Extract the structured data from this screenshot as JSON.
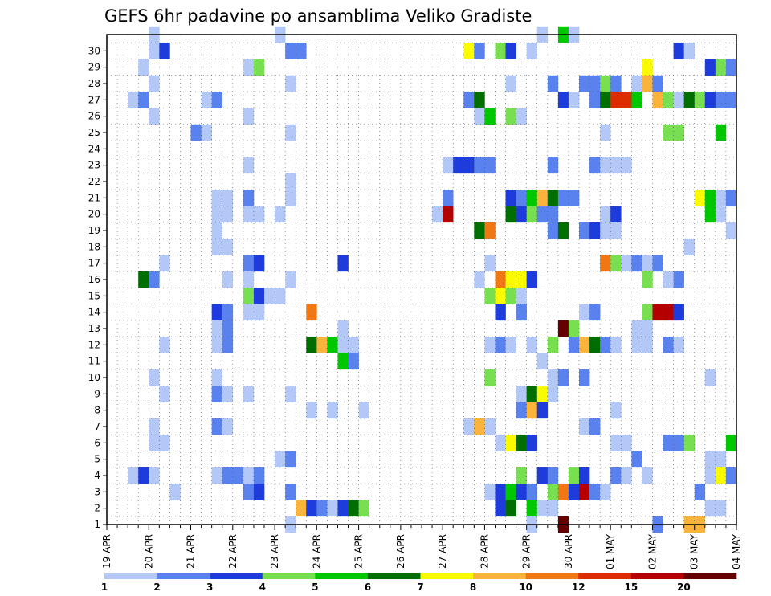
{
  "chart_data": {
    "type": "heatmap",
    "title": "GEFS 6hr padavine po ansamblima Veliko Gradiste",
    "xlabel": "",
    "ylabel": "",
    "x_ticks": [
      "19 APR",
      "20 APR",
      "21 APR",
      "22 APR",
      "23 APR",
      "24 APR",
      "25 APR",
      "26 APR",
      "27 APR",
      "28 APR",
      "29 APR",
      "30 APR",
      "01 MAY",
      "02 MAY",
      "03 MAY",
      "04 MAY"
    ],
    "y_ticks": [
      1,
      2,
      3,
      4,
      5,
      6,
      7,
      8,
      9,
      10,
      11,
      12,
      13,
      14,
      15,
      16,
      17,
      18,
      19,
      20,
      21,
      22,
      23,
      24,
      25,
      26,
      27,
      28,
      29,
      30
    ],
    "x_range_steps": [
      0,
      60
    ],
    "y_range_members": [
      0,
      30
    ],
    "grid": true,
    "legend_position": "bottom",
    "colorbar_labels": [
      "1",
      "2",
      "3",
      "4",
      "5",
      "6",
      "7",
      "8",
      "10",
      "12",
      "15",
      "20"
    ],
    "colorbar_colors": [
      "#b4c8f8",
      "#5a82ee",
      "#1e3cdc",
      "#78e050",
      "#00c800",
      "#006e00",
      "#fafa00",
      "#fab43c",
      "#f07814",
      "#dc2d00",
      "#b40000",
      "#640000"
    ],
    "cells": [
      [
        4,
        30,
        0
      ],
      [
        16,
        30,
        0
      ],
      [
        41,
        30,
        0
      ],
      [
        43,
        30,
        4
      ],
      [
        44,
        30,
        0
      ],
      [
        4,
        29,
        0
      ],
      [
        5,
        29,
        2
      ],
      [
        17,
        29,
        1
      ],
      [
        18,
        29,
        1
      ],
      [
        34,
        29,
        6
      ],
      [
        35,
        29,
        1
      ],
      [
        37,
        29,
        3
      ],
      [
        38,
        29,
        2
      ],
      [
        40,
        29,
        0
      ],
      [
        54,
        29,
        2
      ],
      [
        55,
        29,
        0
      ],
      [
        3,
        28,
        0
      ],
      [
        13,
        28,
        0
      ],
      [
        14,
        28,
        3
      ],
      [
        51,
        28,
        6
      ],
      [
        57,
        28,
        2
      ],
      [
        58,
        28,
        3
      ],
      [
        59,
        28,
        1
      ],
      [
        4,
        27,
        0
      ],
      [
        17,
        27,
        0
      ],
      [
        38,
        27,
        0
      ],
      [
        42,
        27,
        1
      ],
      [
        45,
        27,
        1
      ],
      [
        46,
        27,
        1
      ],
      [
        47,
        27,
        3
      ],
      [
        48,
        27,
        1
      ],
      [
        50,
        27,
        0
      ],
      [
        51,
        27,
        7
      ],
      [
        52,
        27,
        1
      ],
      [
        2,
        26,
        0
      ],
      [
        3,
        26,
        1
      ],
      [
        9,
        26,
        0
      ],
      [
        10,
        26,
        1
      ],
      [
        34,
        26,
        1
      ],
      [
        35,
        26,
        5
      ],
      [
        43,
        26,
        2
      ],
      [
        44,
        26,
        0
      ],
      [
        46,
        26,
        1
      ],
      [
        47,
        26,
        5
      ],
      [
        48,
        26,
        9
      ],
      [
        49,
        26,
        9
      ],
      [
        50,
        26,
        4
      ],
      [
        52,
        26,
        7
      ],
      [
        53,
        26,
        3
      ],
      [
        54,
        26,
        0
      ],
      [
        55,
        26,
        5
      ],
      [
        56,
        26,
        3
      ],
      [
        57,
        26,
        2
      ],
      [
        58,
        26,
        1
      ],
      [
        59,
        26,
        1
      ],
      [
        4,
        25,
        0
      ],
      [
        13,
        25,
        0
      ],
      [
        35,
        25,
        0
      ],
      [
        36,
        25,
        4
      ],
      [
        38,
        25,
        3
      ],
      [
        39,
        25,
        0
      ],
      [
        8,
        24,
        1
      ],
      [
        9,
        24,
        0
      ],
      [
        17,
        24,
        0
      ],
      [
        47,
        24,
        0
      ],
      [
        53,
        24,
        3
      ],
      [
        54,
        24,
        3
      ],
      [
        58,
        24,
        4
      ],
      [
        13,
        22,
        0
      ],
      [
        32,
        22,
        0
      ],
      [
        33,
        22,
        2
      ],
      [
        34,
        22,
        2
      ],
      [
        35,
        22,
        1
      ],
      [
        36,
        22,
        1
      ],
      [
        42,
        22,
        1
      ],
      [
        46,
        22,
        1
      ],
      [
        47,
        22,
        0
      ],
      [
        48,
        22,
        0
      ],
      [
        49,
        22,
        0
      ],
      [
        17,
        21,
        0
      ],
      [
        10,
        20,
        0
      ],
      [
        11,
        20,
        0
      ],
      [
        13,
        20,
        1
      ],
      [
        17,
        20,
        0
      ],
      [
        32,
        20,
        1
      ],
      [
        38,
        20,
        2
      ],
      [
        39,
        20,
        1
      ],
      [
        40,
        20,
        4
      ],
      [
        41,
        20,
        7
      ],
      [
        42,
        20,
        5
      ],
      [
        43,
        20,
        1
      ],
      [
        44,
        20,
        1
      ],
      [
        56,
        20,
        6
      ],
      [
        57,
        20,
        4
      ],
      [
        58,
        20,
        0
      ],
      [
        59,
        20,
        1
      ],
      [
        10,
        19,
        0
      ],
      [
        11,
        19,
        0
      ],
      [
        13,
        19,
        0
      ],
      [
        14,
        19,
        0
      ],
      [
        16,
        19,
        0
      ],
      [
        31,
        19,
        0
      ],
      [
        32,
        19,
        10
      ],
      [
        38,
        19,
        5
      ],
      [
        39,
        19,
        2
      ],
      [
        40,
        19,
        3
      ],
      [
        41,
        19,
        1
      ],
      [
        42,
        19,
        1
      ],
      [
        47,
        19,
        0
      ],
      [
        48,
        19,
        2
      ],
      [
        57,
        19,
        4
      ],
      [
        58,
        19,
        0
      ],
      [
        10,
        18,
        0
      ],
      [
        35,
        18,
        5
      ],
      [
        36,
        18,
        8
      ],
      [
        42,
        18,
        1
      ],
      [
        43,
        18,
        5
      ],
      [
        45,
        18,
        1
      ],
      [
        46,
        18,
        2
      ],
      [
        47,
        18,
        0
      ],
      [
        48,
        18,
        0
      ],
      [
        59,
        18,
        0
      ],
      [
        10,
        17,
        0
      ],
      [
        11,
        17,
        0
      ],
      [
        55,
        17,
        0
      ],
      [
        5,
        16,
        0
      ],
      [
        13,
        16,
        1
      ],
      [
        14,
        16,
        2
      ],
      [
        22,
        16,
        2
      ],
      [
        36,
        16,
        0
      ],
      [
        47,
        16,
        8
      ],
      [
        48,
        16,
        3
      ],
      [
        49,
        16,
        0
      ],
      [
        50,
        16,
        1
      ],
      [
        51,
        16,
        0
      ],
      [
        52,
        16,
        1
      ],
      [
        3,
        15,
        5
      ],
      [
        4,
        15,
        1
      ],
      [
        11,
        15,
        0
      ],
      [
        13,
        15,
        0
      ],
      [
        17,
        15,
        0
      ],
      [
        35,
        15,
        0
      ],
      [
        37,
        15,
        8
      ],
      [
        38,
        15,
        6
      ],
      [
        39,
        15,
        6
      ],
      [
        40,
        15,
        2
      ],
      [
        51,
        15,
        3
      ],
      [
        53,
        15,
        0
      ],
      [
        54,
        15,
        1
      ],
      [
        13,
        14,
        3
      ],
      [
        14,
        14,
        2
      ],
      [
        15,
        14,
        0
      ],
      [
        16,
        14,
        0
      ],
      [
        36,
        14,
        3
      ],
      [
        37,
        14,
        6
      ],
      [
        38,
        14,
        3
      ],
      [
        39,
        14,
        0
      ],
      [
        10,
        13,
        2
      ],
      [
        11,
        13,
        1
      ],
      [
        13,
        13,
        0
      ],
      [
        14,
        13,
        0
      ],
      [
        19,
        13,
        8
      ],
      [
        37,
        13,
        2
      ],
      [
        39,
        13,
        1
      ],
      [
        45,
        13,
        0
      ],
      [
        46,
        13,
        1
      ],
      [
        51,
        13,
        3
      ],
      [
        52,
        13,
        10
      ],
      [
        53,
        13,
        10
      ],
      [
        54,
        13,
        2
      ],
      [
        10,
        12,
        0
      ],
      [
        11,
        12,
        1
      ],
      [
        22,
        12,
        0
      ],
      [
        43,
        12,
        11
      ],
      [
        44,
        12,
        3
      ],
      [
        50,
        12,
        0
      ],
      [
        51,
        12,
        0
      ],
      [
        5,
        11,
        0
      ],
      [
        10,
        11,
        0
      ],
      [
        11,
        11,
        1
      ],
      [
        19,
        11,
        5
      ],
      [
        20,
        11,
        7
      ],
      [
        21,
        11,
        4
      ],
      [
        22,
        11,
        0
      ],
      [
        23,
        11,
        0
      ],
      [
        36,
        11,
        0
      ],
      [
        37,
        11,
        1
      ],
      [
        38,
        11,
        0
      ],
      [
        40,
        11,
        0
      ],
      [
        42,
        11,
        3
      ],
      [
        44,
        11,
        1
      ],
      [
        45,
        11,
        7
      ],
      [
        46,
        11,
        5
      ],
      [
        47,
        11,
        1
      ],
      [
        48,
        11,
        0
      ],
      [
        50,
        11,
        0
      ],
      [
        51,
        11,
        0
      ],
      [
        53,
        11,
        1
      ],
      [
        54,
        11,
        0
      ],
      [
        41,
        10,
        0
      ],
      [
        22,
        10,
        4
      ],
      [
        23,
        10,
        1
      ],
      [
        4,
        9,
        0
      ],
      [
        10,
        9,
        0
      ],
      [
        36,
        9,
        3
      ],
      [
        42,
        9,
        0
      ],
      [
        43,
        9,
        1
      ],
      [
        45,
        9,
        1
      ],
      [
        57,
        9,
        0
      ],
      [
        5,
        8,
        0
      ],
      [
        10,
        8,
        1
      ],
      [
        11,
        8,
        0
      ],
      [
        13,
        8,
        0
      ],
      [
        17,
        8,
        0
      ],
      [
        39,
        8,
        0
      ],
      [
        40,
        8,
        5
      ],
      [
        41,
        8,
        6
      ],
      [
        42,
        8,
        0
      ],
      [
        19,
        7,
        0
      ],
      [
        21,
        7,
        0
      ],
      [
        24,
        7,
        0
      ],
      [
        39,
        7,
        1
      ],
      [
        40,
        7,
        7
      ],
      [
        41,
        7,
        2
      ],
      [
        48,
        7,
        0
      ],
      [
        4,
        6,
        0
      ],
      [
        10,
        6,
        1
      ],
      [
        11,
        6,
        0
      ],
      [
        34,
        6,
        0
      ],
      [
        35,
        6,
        7
      ],
      [
        36,
        6,
        0
      ],
      [
        45,
        6,
        0
      ],
      [
        46,
        6,
        1
      ],
      [
        4,
        5,
        0
      ],
      [
        5,
        5,
        0
      ],
      [
        37,
        5,
        0
      ],
      [
        38,
        5,
        6
      ],
      [
        39,
        5,
        5
      ],
      [
        40,
        5,
        2
      ],
      [
        48,
        5,
        0
      ],
      [
        49,
        5,
        0
      ],
      [
        53,
        5,
        1
      ],
      [
        54,
        5,
        1
      ],
      [
        55,
        5,
        3
      ],
      [
        59,
        5,
        4
      ],
      [
        16,
        4,
        0
      ],
      [
        17,
        4,
        1
      ],
      [
        50,
        4,
        1
      ],
      [
        57,
        4,
        0
      ],
      [
        58,
        4,
        0
      ],
      [
        2,
        3,
        0
      ],
      [
        3,
        3,
        2
      ],
      [
        4,
        3,
        0
      ],
      [
        10,
        3,
        0
      ],
      [
        11,
        3,
        1
      ],
      [
        12,
        3,
        1
      ],
      [
        13,
        3,
        0
      ],
      [
        14,
        3,
        1
      ],
      [
        39,
        3,
        3
      ],
      [
        41,
        3,
        2
      ],
      [
        42,
        3,
        1
      ],
      [
        44,
        3,
        3
      ],
      [
        45,
        3,
        2
      ],
      [
        48,
        3,
        1
      ],
      [
        49,
        3,
        0
      ],
      [
        51,
        3,
        0
      ],
      [
        57,
        3,
        0
      ],
      [
        58,
        3,
        6
      ],
      [
        59,
        3,
        1
      ],
      [
        6,
        2,
        0
      ],
      [
        13,
        2,
        1
      ],
      [
        14,
        2,
        2
      ],
      [
        17,
        2,
        1
      ],
      [
        36,
        2,
        0
      ],
      [
        37,
        2,
        2
      ],
      [
        38,
        2,
        4
      ],
      [
        39,
        2,
        2
      ],
      [
        40,
        2,
        1
      ],
      [
        42,
        2,
        3
      ],
      [
        43,
        2,
        8
      ],
      [
        44,
        2,
        2
      ],
      [
        45,
        2,
        10
      ],
      [
        46,
        2,
        1
      ],
      [
        47,
        2,
        0
      ],
      [
        56,
        2,
        1
      ],
      [
        18,
        1,
        7
      ],
      [
        19,
        1,
        2
      ],
      [
        20,
        1,
        1
      ],
      [
        21,
        1,
        0
      ],
      [
        22,
        1,
        2
      ],
      [
        23,
        1,
        5
      ],
      [
        24,
        1,
        3
      ],
      [
        37,
        1,
        2
      ],
      [
        38,
        1,
        5
      ],
      [
        40,
        1,
        4
      ],
      [
        41,
        1,
        0
      ],
      [
        42,
        1,
        0
      ],
      [
        57,
        1,
        0
      ],
      [
        58,
        1,
        0
      ],
      [
        17,
        0,
        0
      ],
      [
        40,
        0,
        0
      ],
      [
        43,
        0,
        11
      ],
      [
        52,
        0,
        1
      ],
      [
        55,
        0,
        7
      ],
      [
        56,
        0,
        7
      ]
    ]
  }
}
